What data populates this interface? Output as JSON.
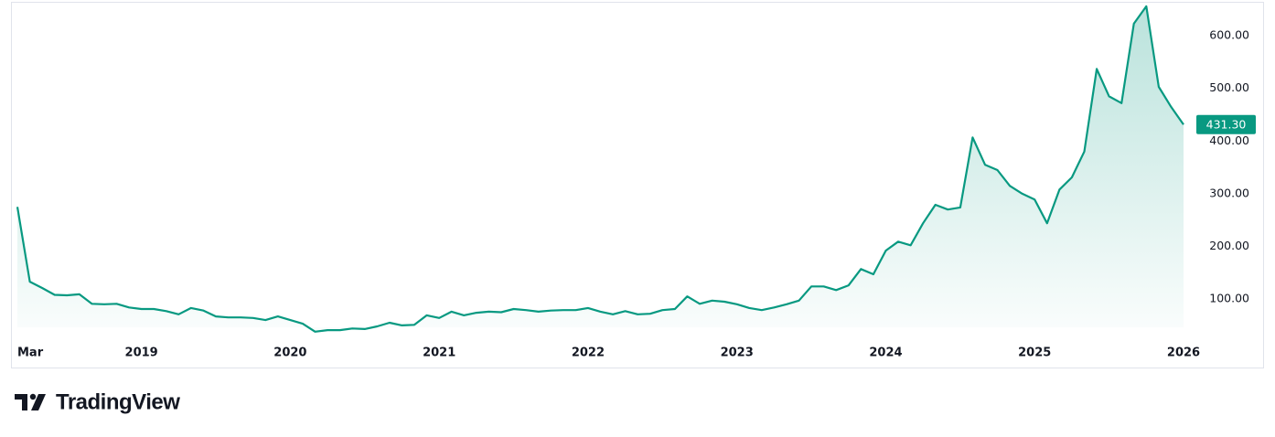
{
  "chart_data": {
    "type": "area",
    "categories": [
      "Mar",
      null,
      null,
      null,
      null,
      null,
      null,
      null,
      null,
      null,
      "2019",
      null,
      null,
      null,
      null,
      null,
      null,
      null,
      null,
      null,
      null,
      null,
      "2020",
      null,
      null,
      null,
      null,
      null,
      null,
      null,
      null,
      null,
      null,
      null,
      "2021",
      null,
      null,
      null,
      null,
      null,
      null,
      null,
      null,
      null,
      null,
      null,
      "2022",
      null,
      null,
      null,
      null,
      null,
      null,
      null,
      null,
      null,
      null,
      null,
      "2023",
      null,
      null,
      null,
      null,
      null,
      null,
      null,
      null,
      null,
      null,
      null,
      "2024",
      null,
      null,
      null,
      null,
      null,
      null,
      null,
      null,
      null,
      null,
      null,
      "2025",
      null,
      null,
      null,
      null,
      null,
      null,
      null,
      null,
      null,
      null,
      null,
      "2026"
    ],
    "values": [
      275,
      133,
      121,
      108,
      107,
      109,
      91,
      90,
      91,
      84,
      81,
      81,
      77,
      71,
      83,
      78,
      67,
      65,
      65,
      64,
      60,
      67,
      60,
      53,
      38,
      41,
      41,
      44,
      43,
      48,
      55,
      50,
      51,
      69,
      64,
      76,
      69,
      74,
      76,
      75,
      81,
      79,
      76,
      78,
      79,
      79,
      83,
      76,
      71,
      77,
      71,
      72,
      79,
      81,
      105,
      91,
      97,
      95,
      90,
      83,
      79,
      84,
      90,
      97,
      124,
      124,
      117,
      126,
      157,
      147,
      192,
      209,
      202,
      244,
      279,
      270,
      274,
      407,
      355,
      345,
      315,
      300,
      289,
      244,
      308,
      331,
      380,
      537,
      485,
      472,
      623,
      656,
      503,
      465,
      431.3
    ],
    "last_label": "431.30",
    "color": "#089981",
    "ylim": [
      22,
      661
    ],
    "yticks": [
      {
        "value": 100,
        "label": "100.00"
      },
      {
        "value": 200,
        "label": "200.00"
      },
      {
        "value": 300,
        "label": "300.00"
      },
      {
        "value": 400,
        "label": "400.00"
      },
      {
        "value": 500,
        "label": "500.00"
      },
      {
        "value": 600,
        "label": "600.00"
      }
    ],
    "grid": false
  },
  "brand": "TradingView"
}
